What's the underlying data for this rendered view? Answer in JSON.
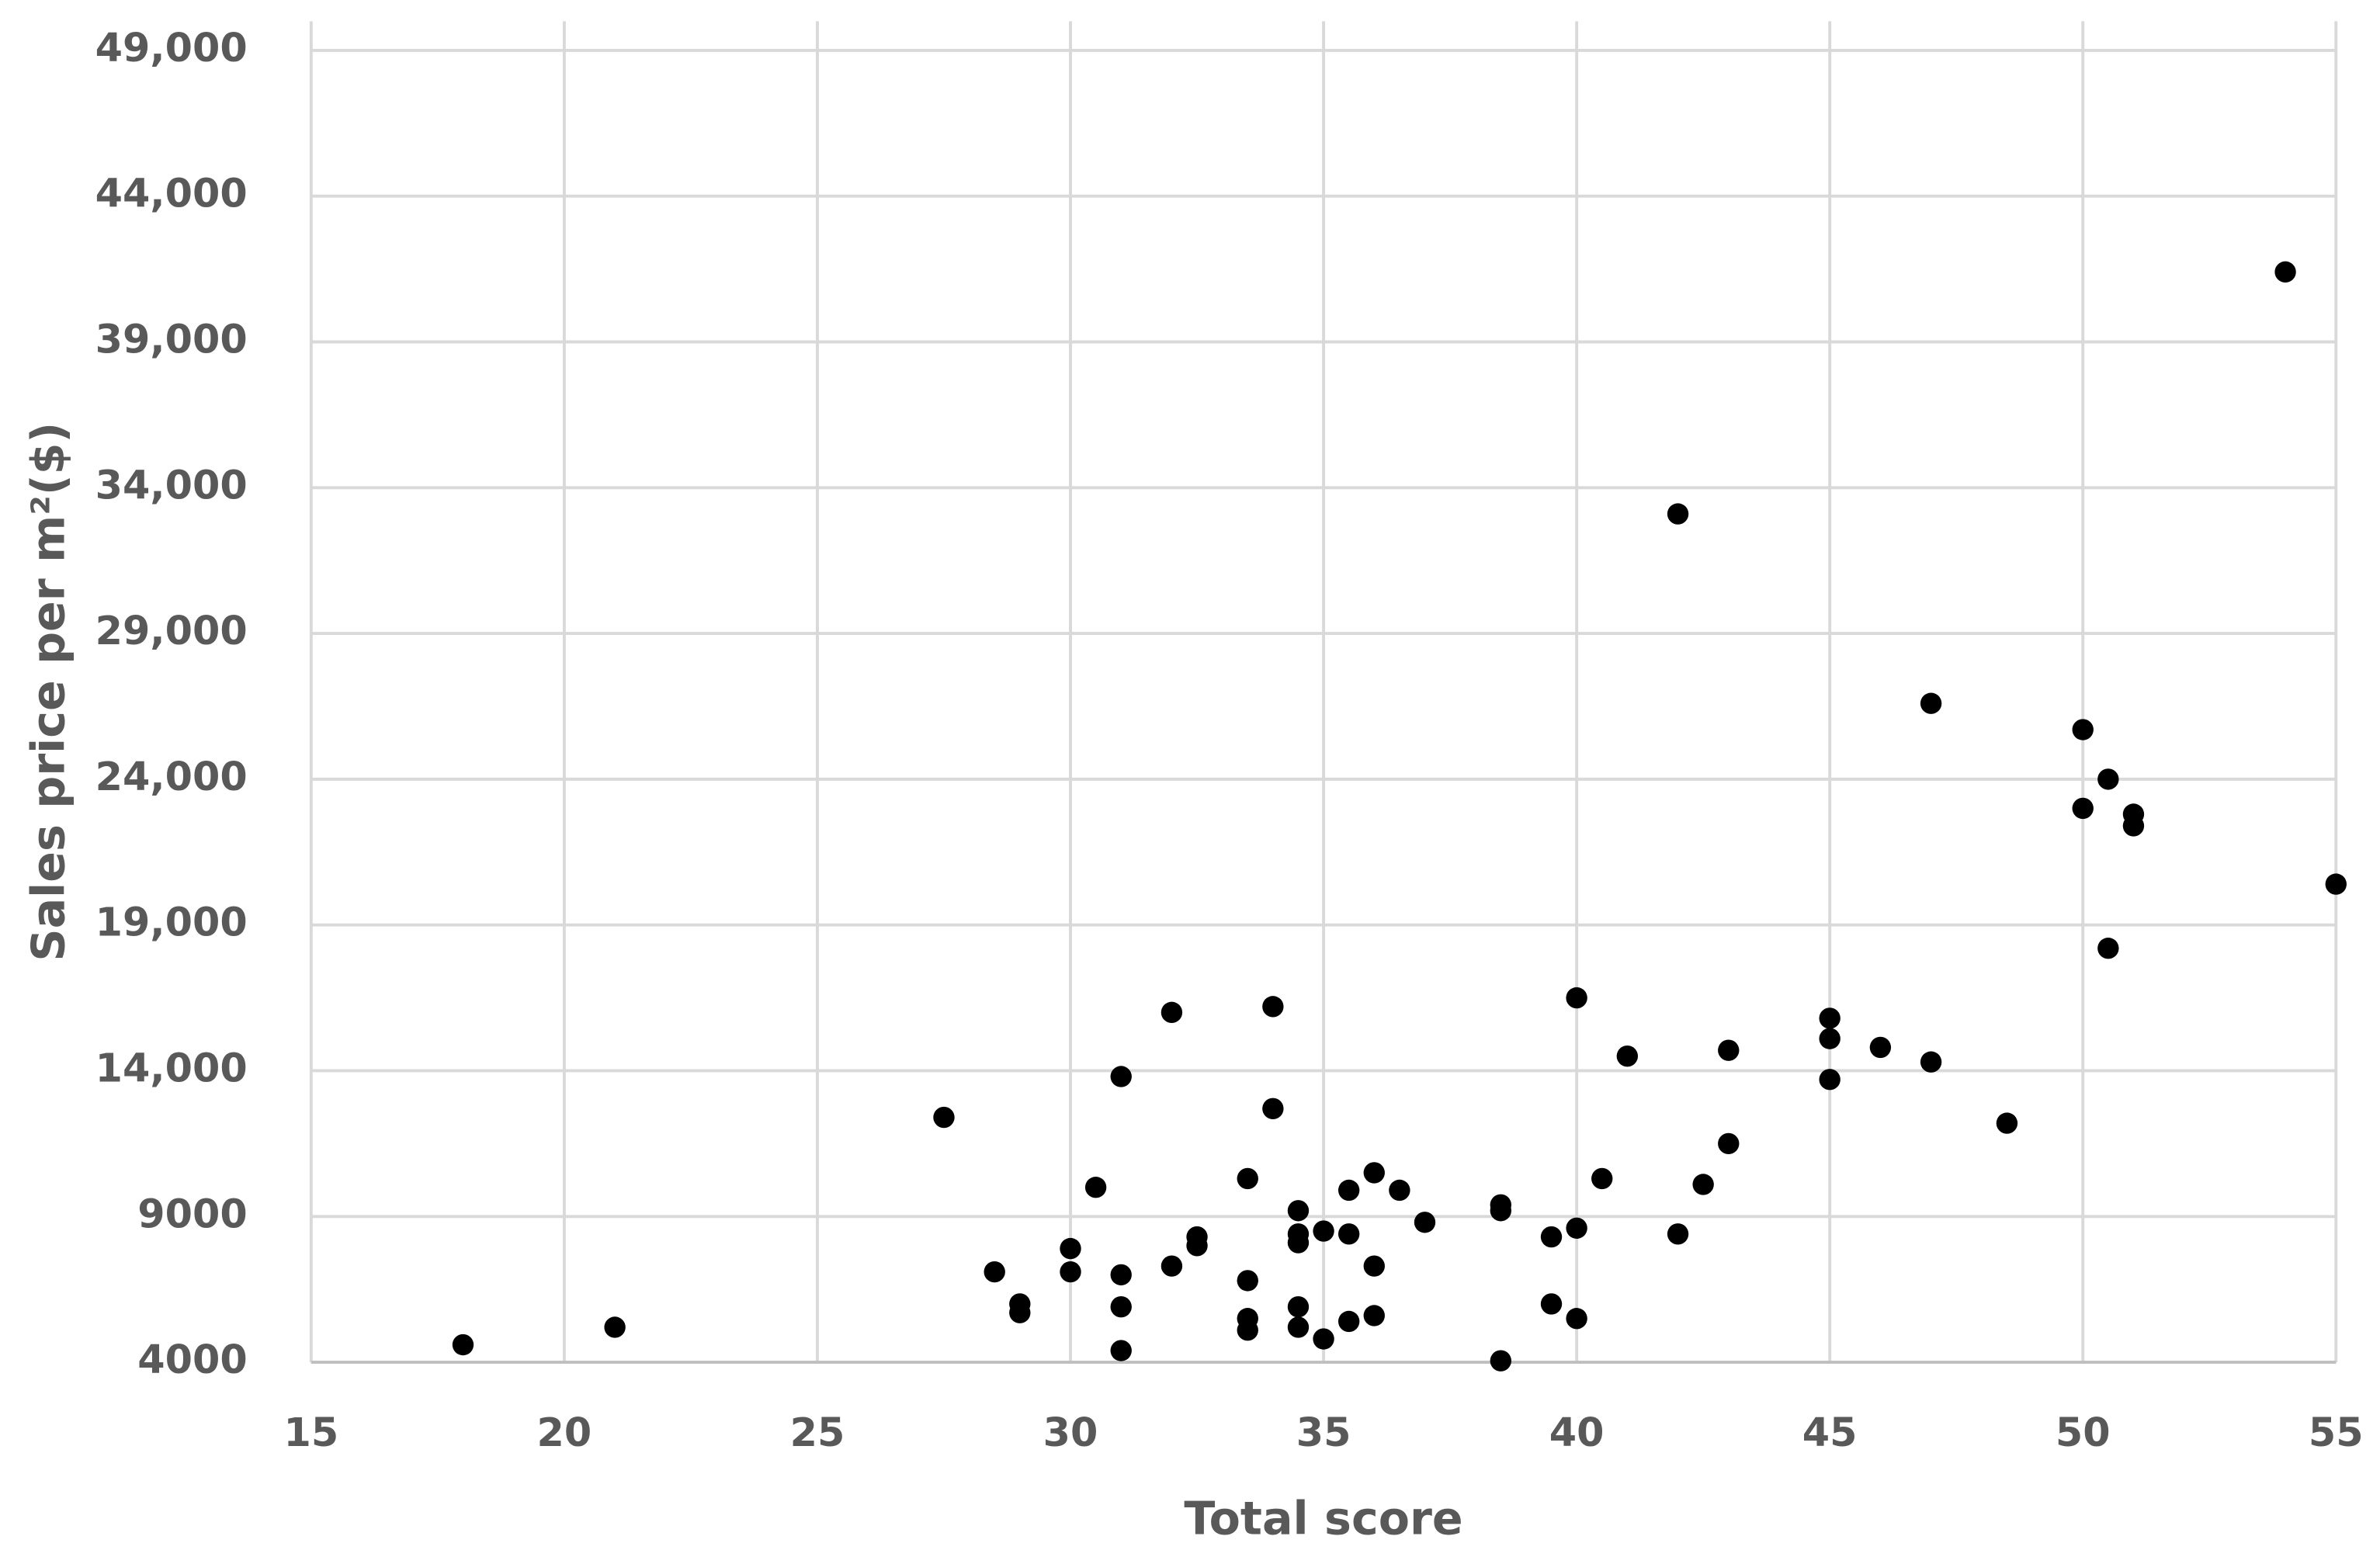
{
  "chart_data": {
    "type": "scatter",
    "x_label": "Total score",
    "y_label": "Sales price per m²($)",
    "color": "#000000",
    "grid": true,
    "xlim": [
      15,
      55
    ],
    "xticks": [
      15,
      20,
      25,
      30,
      35,
      40,
      45,
      50,
      55
    ],
    "ylim": [
      4000,
      50000
    ],
    "yticks": [
      4000,
      9000,
      {
        "value": 14000,
        "label": "14,000"
      },
      {
        "value": 19000,
        "label": "19,000"
      },
      {
        "value": 24000,
        "label": "24,000"
      },
      {
        "value": 29000,
        "label": "29,000"
      },
      {
        "value": 34000,
        "label": "34,000"
      },
      {
        "value": 39000,
        "label": "39,000"
      },
      {
        "value": 44000,
        "label": "44,000"
      },
      {
        "value": 49000,
        "label": "49,000"
      }
    ],
    "x": [
      18,
      21,
      27.5,
      28.5,
      29,
      29,
      30,
      30,
      30.5,
      31,
      31,
      31,
      31,
      32,
      32,
      32.5,
      32.5,
      33.5,
      33.5,
      33.5,
      33.5,
      34,
      34,
      34.5,
      34.5,
      34.5,
      34.5,
      34.5,
      35,
      35,
      35.5,
      35.5,
      35.5,
      36,
      36,
      36,
      36.5,
      37,
      38.5,
      38.5,
      38.5,
      39.5,
      39.5,
      40,
      40,
      40,
      40.5,
      41,
      42,
      42,
      42.5,
      43,
      43,
      45,
      45,
      45,
      46,
      47,
      47,
      48.5,
      50,
      50,
      50.5,
      50.5,
      51,
      51,
      54,
      55
    ],
    "values": [
      4600,
      5200,
      12400,
      7100,
      6000,
      5700,
      7900,
      7100,
      10000,
      13800,
      7000,
      5900,
      4400,
      16000,
      7300,
      8300,
      8000,
      10300,
      6800,
      5500,
      5100,
      16200,
      12700,
      9200,
      8400,
      8100,
      5900,
      5200,
      8500,
      4800,
      9900,
      8400,
      5400,
      10500,
      7300,
      5600,
      9900,
      8800,
      9400,
      9200,
      4050,
      8300,
      6000,
      16500,
      8600,
      5500,
      10300,
      14500,
      33100,
      8400,
      10100,
      14700,
      11500,
      15800,
      15100,
      13700,
      14800,
      26600,
      14300,
      12200,
      25700,
      23000,
      24000,
      18200,
      22800,
      22400,
      41400,
      20400
    ]
  }
}
